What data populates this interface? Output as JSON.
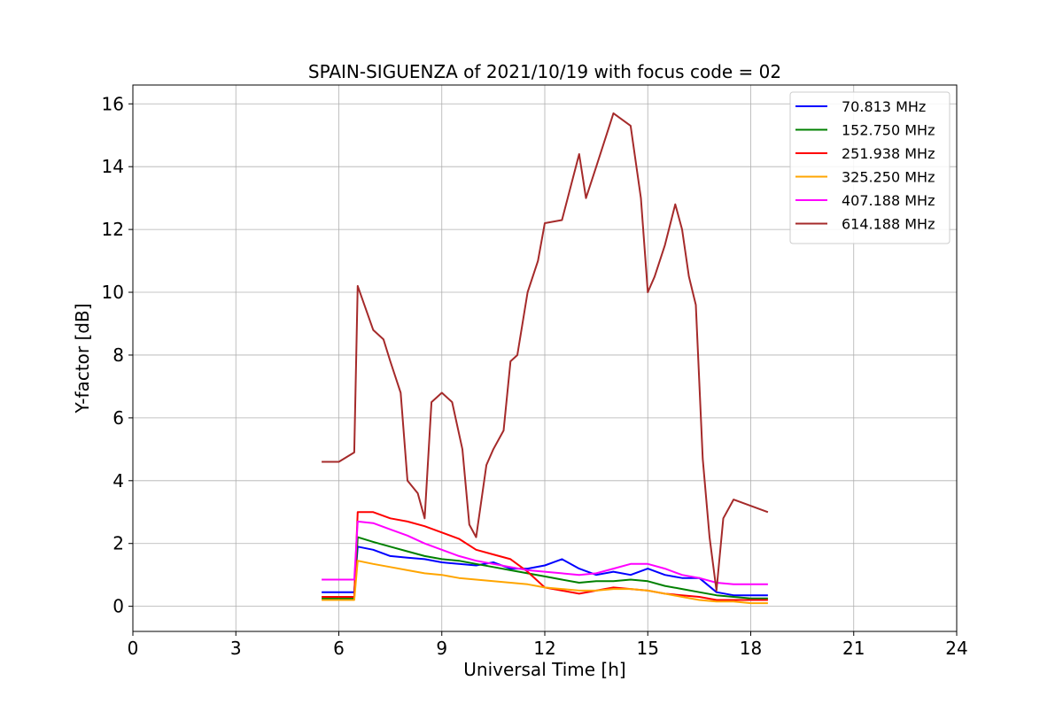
{
  "chart_data": {
    "type": "line",
    "title": "SPAIN-SIGUENZA of 2021/10/19 with focus code = 02",
    "xlabel": "Universal Time [h]",
    "ylabel": "Y-factor [dB]",
    "xlim": [
      0,
      24
    ],
    "ylim": [
      -0.8,
      16.6
    ],
    "xticks": [
      0,
      3,
      6,
      9,
      12,
      15,
      18,
      21,
      24
    ],
    "xtick_labels": [
      "0",
      "3",
      "6",
      "9",
      "12",
      "15",
      "18",
      "21",
      "24"
    ],
    "yticks": [
      0,
      2,
      4,
      6,
      8,
      10,
      12,
      14,
      16
    ],
    "ytick_labels": [
      "0",
      "2",
      "4",
      "6",
      "8",
      "10",
      "12",
      "14",
      "16"
    ],
    "grid": true,
    "legend_position": "top-right",
    "series": [
      {
        "name": "  70.813 MHz",
        "color": "#0000ff",
        "x": [
          5.5,
          6.0,
          6.45,
          6.55,
          7.0,
          7.5,
          8.0,
          8.5,
          9.0,
          9.5,
          10.0,
          10.5,
          11.0,
          11.5,
          12.0,
          12.5,
          13.0,
          13.5,
          14.0,
          14.5,
          15.0,
          15.5,
          16.0,
          16.5,
          17.0,
          17.5,
          18.0,
          18.5
        ],
        "y": [
          0.45,
          0.45,
          0.45,
          1.9,
          1.8,
          1.6,
          1.55,
          1.5,
          1.4,
          1.35,
          1.3,
          1.4,
          1.2,
          1.2,
          1.3,
          1.5,
          1.2,
          1.0,
          1.1,
          1.0,
          1.2,
          1.0,
          0.9,
          0.9,
          0.45,
          0.35,
          0.35,
          0.35
        ]
      },
      {
        "name": "152.750 MHz",
        "color": "#008000",
        "x": [
          5.5,
          6.0,
          6.45,
          6.55,
          7.0,
          7.5,
          8.0,
          8.5,
          9.0,
          9.5,
          10.0,
          10.5,
          11.0,
          11.5,
          12.0,
          12.5,
          13.0,
          13.5,
          14.0,
          14.5,
          15.0,
          15.5,
          16.0,
          16.5,
          17.0,
          17.5,
          18.0,
          18.5
        ],
        "y": [
          0.25,
          0.25,
          0.25,
          2.2,
          2.05,
          1.9,
          1.75,
          1.6,
          1.5,
          1.45,
          1.35,
          1.25,
          1.15,
          1.05,
          0.95,
          0.85,
          0.75,
          0.8,
          0.8,
          0.85,
          0.8,
          0.65,
          0.55,
          0.45,
          0.35,
          0.3,
          0.25,
          0.25
        ]
      },
      {
        "name": "251.938 MHz",
        "color": "#ff0000",
        "x": [
          5.5,
          6.0,
          6.45,
          6.55,
          7.0,
          7.5,
          8.0,
          8.5,
          9.0,
          9.5,
          10.0,
          10.5,
          11.0,
          11.5,
          12.0,
          12.5,
          13.0,
          13.5,
          14.0,
          14.5,
          15.0,
          15.5,
          16.0,
          16.5,
          17.0,
          17.5,
          18.0,
          18.5
        ],
        "y": [
          0.3,
          0.3,
          0.3,
          3.0,
          3.0,
          2.8,
          2.7,
          2.55,
          2.35,
          2.15,
          1.8,
          1.65,
          1.5,
          1.1,
          0.6,
          0.5,
          0.4,
          0.5,
          0.6,
          0.55,
          0.5,
          0.4,
          0.35,
          0.3,
          0.2,
          0.2,
          0.2,
          0.2
        ]
      },
      {
        "name": "325.250 MHz",
        "color": "#ffa500",
        "x": [
          5.5,
          6.0,
          6.45,
          6.55,
          7.0,
          7.5,
          8.0,
          8.5,
          9.0,
          9.5,
          10.0,
          10.5,
          11.0,
          11.5,
          12.0,
          12.5,
          13.0,
          13.5,
          14.0,
          14.5,
          15.0,
          15.5,
          16.0,
          16.5,
          17.0,
          17.5,
          18.0,
          18.5
        ],
        "y": [
          0.2,
          0.2,
          0.2,
          1.45,
          1.35,
          1.25,
          1.15,
          1.05,
          1.0,
          0.9,
          0.85,
          0.8,
          0.75,
          0.7,
          0.6,
          0.55,
          0.5,
          0.5,
          0.55,
          0.55,
          0.5,
          0.4,
          0.3,
          0.2,
          0.15,
          0.15,
          0.1,
          0.1
        ]
      },
      {
        "name": "407.188 MHz",
        "color": "#ff00ff",
        "x": [
          5.5,
          6.0,
          6.45,
          6.55,
          7.0,
          7.5,
          8.0,
          8.5,
          9.0,
          9.5,
          10.0,
          10.5,
          11.0,
          11.5,
          12.0,
          12.5,
          13.0,
          13.5,
          14.0,
          14.5,
          15.0,
          15.5,
          16.0,
          16.5,
          17.0,
          17.5,
          18.0,
          18.5
        ],
        "y": [
          0.85,
          0.85,
          0.85,
          2.7,
          2.65,
          2.45,
          2.25,
          2.0,
          1.8,
          1.6,
          1.45,
          1.35,
          1.25,
          1.15,
          1.1,
          1.05,
          1.0,
          1.05,
          1.2,
          1.35,
          1.35,
          1.2,
          1.0,
          0.9,
          0.75,
          0.7,
          0.7,
          0.7
        ]
      },
      {
        "name": "614.188 MHz",
        "color": "#a52a2a",
        "x": [
          5.5,
          6.0,
          6.45,
          6.55,
          7.0,
          7.3,
          7.5,
          7.8,
          8.0,
          8.3,
          8.5,
          8.7,
          9.0,
          9.3,
          9.6,
          9.8,
          10.0,
          10.3,
          10.5,
          10.8,
          11.0,
          11.2,
          11.5,
          11.8,
          12.0,
          12.5,
          13.0,
          13.2,
          13.5,
          14.0,
          14.5,
          14.8,
          15.0,
          15.2,
          15.5,
          15.8,
          16.0,
          16.2,
          16.4,
          16.6,
          16.8,
          17.0,
          17.2,
          17.5,
          18.0,
          18.5
        ],
        "y": [
          4.6,
          4.6,
          4.9,
          10.2,
          8.8,
          8.5,
          7.8,
          6.8,
          4.0,
          3.6,
          2.8,
          6.5,
          6.8,
          6.5,
          5.0,
          2.6,
          2.2,
          4.5,
          5.0,
          5.6,
          7.8,
          8.0,
          10.0,
          11.0,
          12.2,
          12.3,
          14.4,
          13.0,
          14.0,
          15.7,
          15.3,
          13.0,
          10.0,
          10.5,
          11.5,
          12.8,
          12.0,
          10.5,
          9.6,
          4.7,
          2.2,
          0.5,
          2.8,
          3.4,
          3.2,
          3.0
        ]
      }
    ]
  }
}
